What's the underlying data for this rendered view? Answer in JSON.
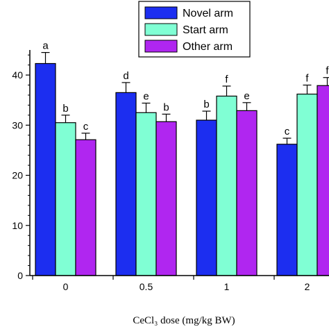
{
  "chart_data": {
    "type": "bar",
    "title": "",
    "xlabel": "CeCl₃ dose (mg/kg BW)",
    "ylabel": "",
    "ylim": [
      0,
      45
    ],
    "yticks": [
      0,
      10,
      20,
      30,
      40
    ],
    "categories": [
      "0",
      "0.5",
      "1",
      "2"
    ],
    "grid": false,
    "legend_position": "top-right",
    "series": [
      {
        "name": "Novel arm",
        "color": "#1c2ef0",
        "values": [
          42.3,
          36.5,
          31.0,
          26.2
        ],
        "errors": [
          2.2,
          2.0,
          1.8,
          1.2
        ],
        "labels": [
          "a",
          "d",
          "b",
          "c"
        ]
      },
      {
        "name": "Start arm",
        "color": "#80ffd4",
        "values": [
          30.5,
          32.5,
          35.8,
          36.2
        ],
        "errors": [
          1.5,
          1.9,
          2.0,
          1.8
        ],
        "labels": [
          "b",
          "e",
          "f",
          "f"
        ]
      },
      {
        "name": "Other arm",
        "color": "#b026f0",
        "values": [
          27.1,
          30.7,
          32.9,
          37.9
        ],
        "errors": [
          1.3,
          1.5,
          1.6,
          1.6
        ],
        "labels": [
          "c",
          "b",
          "e",
          "f"
        ]
      }
    ]
  }
}
